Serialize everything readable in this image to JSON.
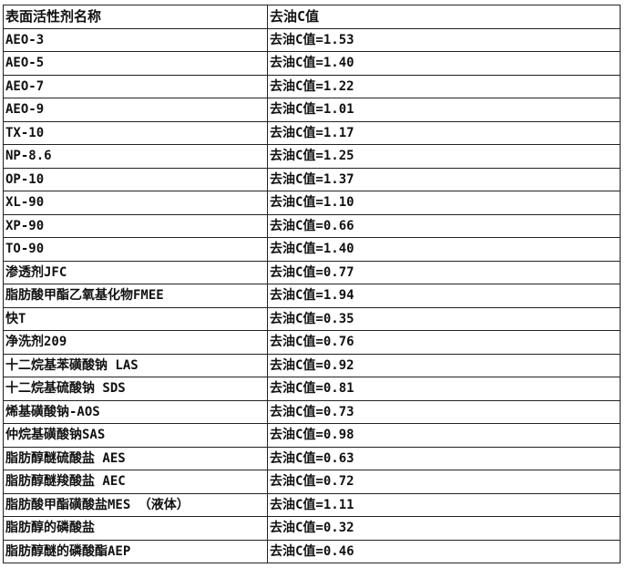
{
  "table": {
    "headers": [
      "表面活性剂名称",
      "去油C值"
    ],
    "rows": [
      [
        "AEO-3",
        "去油C值=1.53"
      ],
      [
        "AEO-5",
        "去油C值=1.40"
      ],
      [
        "AEO-7",
        "去油C值=1.22"
      ],
      [
        "AEO-9",
        "去油C值=1.01"
      ],
      [
        "TX-10",
        "去油C值=1.17"
      ],
      [
        "NP-8.6",
        "去油C值=1.25"
      ],
      [
        "OP-10",
        "去油C值=1.37"
      ],
      [
        "XL-90",
        "去油C值=1.10"
      ],
      [
        "XP-90",
        "去油C值=0.66"
      ],
      [
        "TO-90",
        "去油C值=1.40"
      ],
      [
        "渗透剂JFC",
        "去油C值=0.77"
      ],
      [
        "脂肪酸甲酯乙氧基化物FMEE",
        "去油C值=1.94"
      ],
      [
        "快T",
        "去油C值=0.35"
      ],
      [
        "净洗剂209",
        "去油C值=0.76"
      ],
      [
        "十二烷基苯磺酸钠 LAS",
        "去油C值=0.92"
      ],
      [
        "十二烷基硫酸钠 SDS",
        "去油C值=0.81"
      ],
      [
        "烯基磺酸钠-AOS",
        "去油C值=0.73"
      ],
      [
        "仲烷基磺酸钠SAS",
        "去油C值=0.98"
      ],
      [
        "脂肪醇醚硫酸盐 AES",
        "去油C值=0.63"
      ],
      [
        "脂肪醇醚羧酸盐 AEC",
        "去油C值=0.72"
      ],
      [
        "脂肪酸甲酯磺酸盐MES （液体）",
        "去油C值=1.11"
      ],
      [
        "脂肪醇的磷酸盐",
        "去油C值=0.32"
      ],
      [
        "脂肪醇醚的磷酸酯AEP",
        "去油C值=0.46"
      ]
    ]
  }
}
